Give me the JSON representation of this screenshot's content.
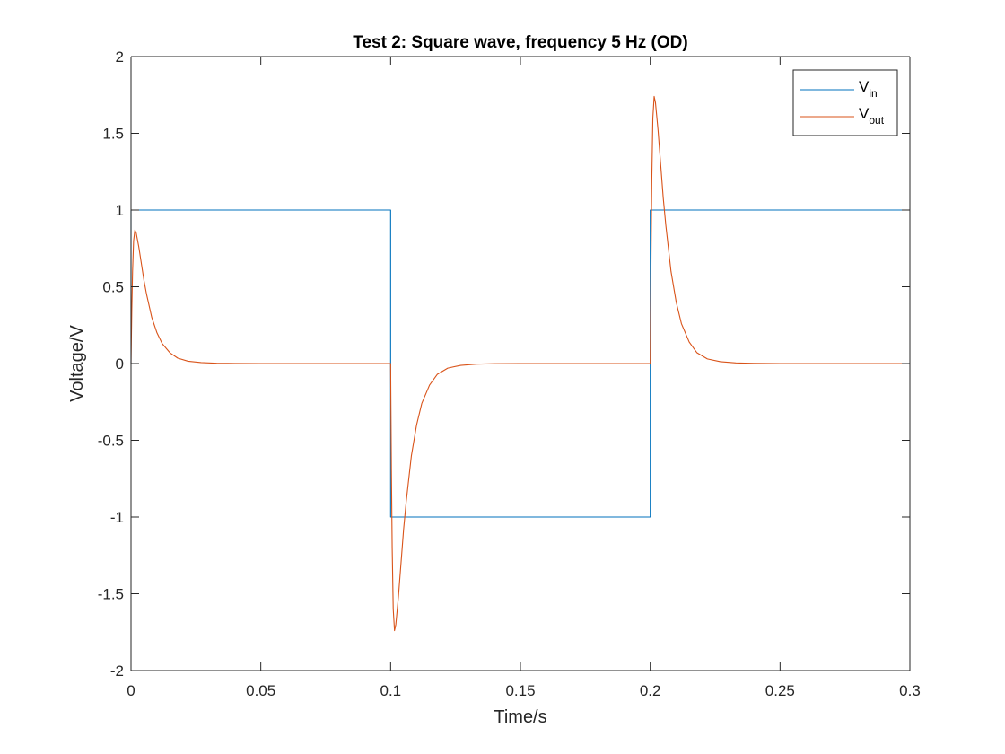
{
  "chart_data": {
    "type": "line",
    "title": "Test 2: Square wave, frequency 5 Hz (OD)",
    "xlabel": "Time/s",
    "ylabel": "Voltage/V",
    "xlim": [
      0,
      0.3
    ],
    "ylim": [
      -2,
      2
    ],
    "xticks": [
      0,
      0.05,
      0.1,
      0.15,
      0.2,
      0.25,
      0.3
    ],
    "yticks": [
      -2,
      -1.5,
      -1,
      -0.5,
      0,
      0.5,
      1,
      1.5,
      2
    ],
    "xtick_labels": [
      "0",
      "0.05",
      "0.1",
      "0.15",
      "0.2",
      "0.25",
      "0.3"
    ],
    "ytick_labels": [
      "-2",
      "-1.5",
      "-1",
      "-0.5",
      "0",
      "0.5",
      "1",
      "1.5",
      "2"
    ],
    "grid": false,
    "legend_position": "top-right",
    "series": [
      {
        "name": "V",
        "name_subscript": "in",
        "color": "#0072BD",
        "x": [
          0,
          0,
          0.1,
          0.1,
          0.2,
          0.2,
          0.3
        ],
        "y": [
          0,
          1,
          1,
          -1,
          -1,
          1,
          1
        ]
      },
      {
        "name": "V",
        "name_subscript": "out",
        "color": "#D95319",
        "x": [
          0,
          0.0003,
          0.0006,
          0.001,
          0.0015,
          0.002,
          0.003,
          0.004,
          0.005,
          0.006,
          0.008,
          0.01,
          0.012,
          0.015,
          0.018,
          0.022,
          0.027,
          0.033,
          0.04,
          0.05,
          0.1,
          0.1003,
          0.1006,
          0.101,
          0.1015,
          0.102,
          0.103,
          0.104,
          0.105,
          0.106,
          0.108,
          0.11,
          0.112,
          0.115,
          0.118,
          0.122,
          0.127,
          0.133,
          0.14,
          0.15,
          0.2,
          0.2003,
          0.2006,
          0.201,
          0.2015,
          0.202,
          0.203,
          0.204,
          0.205,
          0.206,
          0.208,
          0.21,
          0.212,
          0.215,
          0.218,
          0.222,
          0.227,
          0.233,
          0.24,
          0.25,
          0.3
        ],
        "y": [
          0,
          0.35,
          0.6,
          0.8,
          0.87,
          0.85,
          0.76,
          0.65,
          0.54,
          0.45,
          0.3,
          0.2,
          0.13,
          0.07,
          0.035,
          0.015,
          0.006,
          0.002,
          0.0005,
          0,
          0,
          -0.7,
          -1.2,
          -1.6,
          -1.74,
          -1.7,
          -1.52,
          -1.3,
          -1.08,
          -0.9,
          -0.6,
          -0.4,
          -0.26,
          -0.14,
          -0.07,
          -0.03,
          -0.012,
          -0.004,
          -0.001,
          0,
          0,
          0.7,
          1.2,
          1.6,
          1.74,
          1.7,
          1.52,
          1.3,
          1.08,
          0.9,
          0.6,
          0.4,
          0.26,
          0.14,
          0.07,
          0.03,
          0.012,
          0.004,
          0.001,
          0,
          0
        ]
      }
    ]
  }
}
